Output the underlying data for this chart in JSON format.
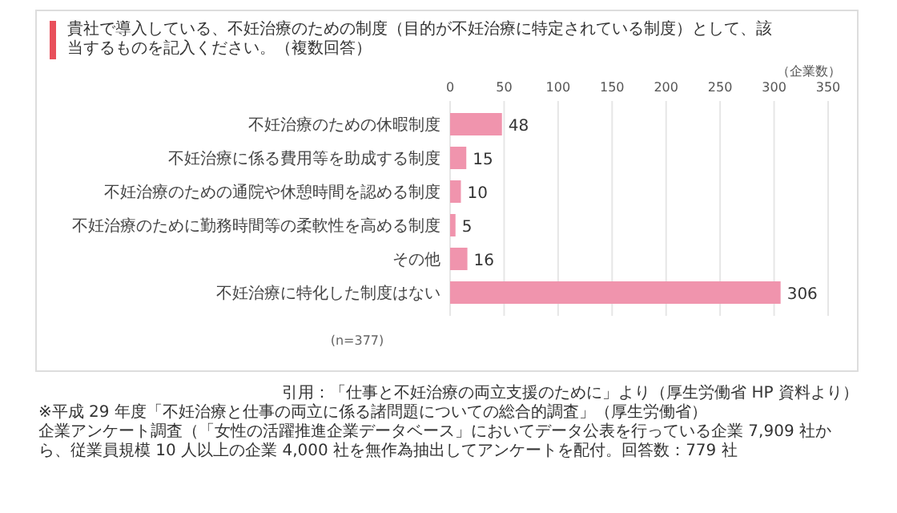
{
  "chart_data": {
    "type": "bar",
    "orientation": "horizontal",
    "title": "貴社で導入している、不妊治療のための制度（目的が不妊治療に特定されている制度）として、該当するものを記入ください。（複数回答）",
    "xlabel": "（企業数）",
    "categories": [
      "不妊治療のための休暇制度",
      "不妊治療に係る費用等を助成する制度",
      "不妊治療のための通院や休憩時間を認める制度",
      "不妊治療のために勤務時間等の柔軟性を高める制度",
      "その他",
      "不妊治療に特化した制度はない"
    ],
    "values": [
      48,
      15,
      10,
      5,
      16,
      306
    ],
    "color": "#f094ad",
    "xlim": [
      0,
      350
    ],
    "xticks": [
      0,
      50,
      100,
      150,
      200,
      250,
      300,
      350
    ],
    "grid": "x",
    "data_labels": true,
    "annotations": [
      "(n=377)",
      "引用：「仕事と不妊治療の両立支援のために」より（厚生労働省 HP 資料より）",
      "※平成 29 年度「不妊治療と仕事の両立に係る諸問題についての総合的調査」（厚生労働省）",
      "企業アンケート調査（「女性の活躍推進企業データベース」においてデータ公表を行っている企業 7,909 社から、従業員規模 10 人以上の企業 4,000 社を無作為抽出してアンケートを配付。回答数：779 社"
    ]
  }
}
